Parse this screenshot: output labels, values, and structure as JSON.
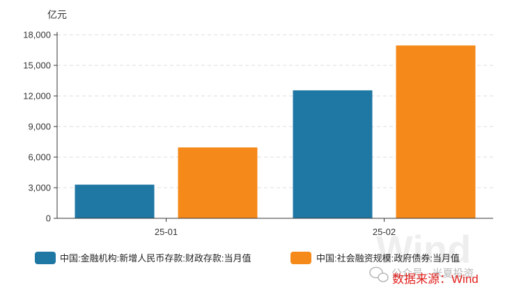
{
  "chart_data": {
    "type": "bar",
    "unit": "亿元",
    "categories": [
      "25-01",
      "25-02"
    ],
    "series": [
      {
        "name": "中国:金融机构:新增人民币存款:财政存款:当月值",
        "color": "#1f77a4",
        "values": [
          3300,
          12550
        ]
      },
      {
        "name": "中国:社会融资规模:政府债券:当月值",
        "color": "#f5891a",
        "values": [
          6950,
          16950
        ]
      }
    ],
    "ylim": [
      0,
      18000
    ],
    "yticks": [
      0,
      3000,
      6000,
      9000,
      12000,
      15000,
      18000
    ],
    "ytick_labels": [
      "0",
      "3,000",
      "6,000",
      "9,000",
      "12,000",
      "15,000",
      "18,000"
    ],
    "grid": true,
    "legend_position": "bottom"
  },
  "watermark": {
    "background_text": "Wind",
    "wechat_text": "公众号 · 米夏投资",
    "icon": "wechat-icon"
  },
  "source_text": "数据来源：Wind"
}
